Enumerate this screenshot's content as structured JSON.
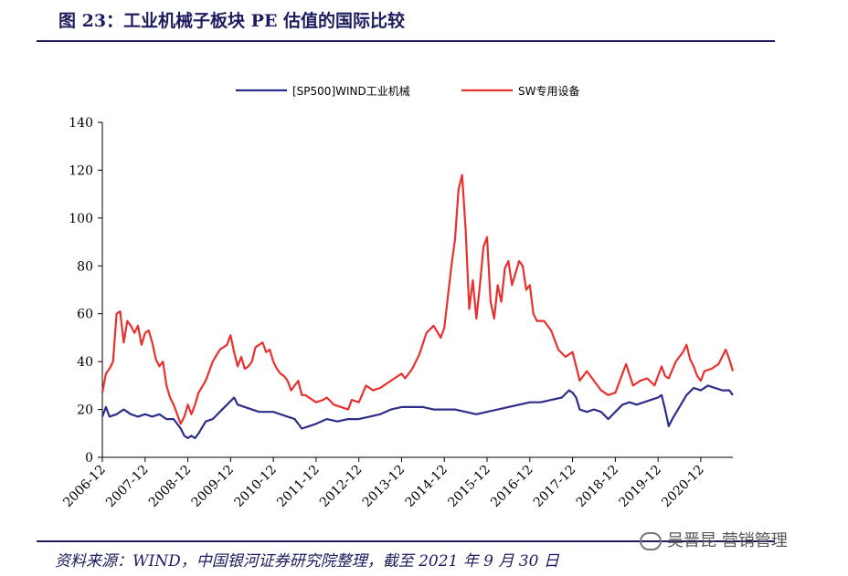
{
  "figure": {
    "title": "图 23：工业机械子板块 PE 估值的国际比较",
    "source": "资料来源：WIND，中国银河证券研究院整理，截至 2021 年 9 月 30 日",
    "watermark": "吴晋昆 营销管理"
  },
  "chart_data": {
    "type": "line",
    "title": "",
    "xlabel": "",
    "ylabel": "",
    "ylim": [
      0,
      140
    ],
    "yticks": [
      0,
      20,
      40,
      60,
      80,
      100,
      120,
      140
    ],
    "xlim": [
      "2006-12",
      "2021-09"
    ],
    "xticks": [
      "2006-12",
      "2007-12",
      "2008-12",
      "2009-12",
      "2010-12",
      "2011-12",
      "2012-12",
      "2013-12",
      "2014-12",
      "2015-12",
      "2016-12",
      "2017-12",
      "2018-12",
      "2019-12",
      "2020-12"
    ],
    "grid": false,
    "legend_position": "top-center",
    "series": [
      {
        "name": "[SP500]WIND工业机械",
        "color": "#2e2e8a",
        "points": [
          [
            "2006-12",
            17
          ],
          [
            "2007-01",
            21
          ],
          [
            "2007-02",
            17
          ],
          [
            "2007-04",
            18
          ],
          [
            "2007-06",
            20
          ],
          [
            "2007-08",
            18
          ],
          [
            "2007-10",
            17
          ],
          [
            "2007-12",
            18
          ],
          [
            "2008-02",
            17
          ],
          [
            "2008-04",
            18
          ],
          [
            "2008-06",
            16
          ],
          [
            "2008-08",
            16
          ],
          [
            "2008-10",
            12
          ],
          [
            "2008-11",
            9
          ],
          [
            "2008-12",
            8
          ],
          [
            "2009-01",
            9
          ],
          [
            "2009-02",
            8
          ],
          [
            "2009-03",
            10
          ],
          [
            "2009-05",
            15
          ],
          [
            "2009-07",
            16
          ],
          [
            "2009-09",
            19
          ],
          [
            "2009-11",
            22
          ],
          [
            "2010-01",
            25
          ],
          [
            "2010-02",
            22
          ],
          [
            "2010-04",
            21
          ],
          [
            "2010-06",
            20
          ],
          [
            "2010-08",
            19
          ],
          [
            "2010-10",
            19
          ],
          [
            "2010-12",
            19
          ],
          [
            "2011-02",
            18
          ],
          [
            "2011-04",
            17
          ],
          [
            "2011-06",
            16
          ],
          [
            "2011-08",
            12
          ],
          [
            "2011-10",
            13
          ],
          [
            "2011-12",
            14
          ],
          [
            "2012-03",
            16
          ],
          [
            "2012-06",
            15
          ],
          [
            "2012-09",
            16
          ],
          [
            "2012-12",
            16
          ],
          [
            "2013-03",
            17
          ],
          [
            "2013-06",
            18
          ],
          [
            "2013-09",
            20
          ],
          [
            "2013-12",
            21
          ],
          [
            "2014-03",
            21
          ],
          [
            "2014-06",
            21
          ],
          [
            "2014-09",
            20
          ],
          [
            "2014-12",
            20
          ],
          [
            "2015-03",
            20
          ],
          [
            "2015-06",
            19
          ],
          [
            "2015-09",
            18
          ],
          [
            "2015-12",
            19
          ],
          [
            "2016-03",
            20
          ],
          [
            "2016-06",
            21
          ],
          [
            "2016-09",
            22
          ],
          [
            "2016-12",
            23
          ],
          [
            "2017-03",
            23
          ],
          [
            "2017-06",
            24
          ],
          [
            "2017-09",
            25
          ],
          [
            "2017-11",
            28
          ],
          [
            "2017-12",
            27
          ],
          [
            "2018-01",
            25
          ],
          [
            "2018-02",
            20
          ],
          [
            "2018-04",
            19
          ],
          [
            "2018-06",
            20
          ],
          [
            "2018-08",
            19
          ],
          [
            "2018-10",
            16
          ],
          [
            "2018-12",
            19
          ],
          [
            "2019-02",
            22
          ],
          [
            "2019-04",
            23
          ],
          [
            "2019-06",
            22
          ],
          [
            "2019-08",
            23
          ],
          [
            "2019-10",
            24
          ],
          [
            "2019-12",
            25
          ],
          [
            "2020-01",
            26
          ],
          [
            "2020-02",
            20
          ],
          [
            "2020-03",
            13
          ],
          [
            "2020-04",
            16
          ],
          [
            "2020-06",
            21
          ],
          [
            "2020-08",
            26
          ],
          [
            "2020-10",
            29
          ],
          [
            "2020-12",
            28
          ],
          [
            "2021-02",
            30
          ],
          [
            "2021-04",
            29
          ],
          [
            "2021-06",
            28
          ],
          [
            "2021-08",
            28
          ],
          [
            "2021-09",
            26
          ]
        ]
      },
      {
        "name": "SW专用设备",
        "color": "#e8312f",
        "points": [
          [
            "2006-12",
            27
          ],
          [
            "2007-01",
            35
          ],
          [
            "2007-02",
            37
          ],
          [
            "2007-03",
            40
          ],
          [
            "2007-04",
            60
          ],
          [
            "2007-05",
            61
          ],
          [
            "2007-06",
            48
          ],
          [
            "2007-07",
            57
          ],
          [
            "2007-08",
            55
          ],
          [
            "2007-09",
            52
          ],
          [
            "2007-10",
            55
          ],
          [
            "2007-11",
            47
          ],
          [
            "2007-12",
            52
          ],
          [
            "2008-01",
            53
          ],
          [
            "2008-02",
            48
          ],
          [
            "2008-03",
            41
          ],
          [
            "2008-04",
            38
          ],
          [
            "2008-05",
            40
          ],
          [
            "2008-06",
            30
          ],
          [
            "2008-07",
            25
          ],
          [
            "2008-08",
            22
          ],
          [
            "2008-09",
            18
          ],
          [
            "2008-10",
            14
          ],
          [
            "2008-11",
            17
          ],
          [
            "2008-12",
            22
          ],
          [
            "2009-01",
            18
          ],
          [
            "2009-02",
            22
          ],
          [
            "2009-03",
            27
          ],
          [
            "2009-05",
            32
          ],
          [
            "2009-07",
            40
          ],
          [
            "2009-09",
            45
          ],
          [
            "2009-11",
            47
          ],
          [
            "2009-12",
            51
          ],
          [
            "2010-01",
            44
          ],
          [
            "2010-02",
            38
          ],
          [
            "2010-03",
            42
          ],
          [
            "2010-04",
            37
          ],
          [
            "2010-05",
            38
          ],
          [
            "2010-06",
            40
          ],
          [
            "2010-07",
            46
          ],
          [
            "2010-08",
            47
          ],
          [
            "2010-09",
            48
          ],
          [
            "2010-10",
            44
          ],
          [
            "2010-11",
            45
          ],
          [
            "2010-12",
            40
          ],
          [
            "2011-01",
            37
          ],
          [
            "2011-02",
            35
          ],
          [
            "2011-03",
            34
          ],
          [
            "2011-04",
            32
          ],
          [
            "2011-05",
            28
          ],
          [
            "2011-06",
            30
          ],
          [
            "2011-07",
            32
          ],
          [
            "2011-08",
            26
          ],
          [
            "2011-09",
            26
          ],
          [
            "2011-10",
            25
          ],
          [
            "2011-11",
            24
          ],
          [
            "2011-12",
            23
          ],
          [
            "2012-02",
            24
          ],
          [
            "2012-03",
            25
          ],
          [
            "2012-05",
            22
          ],
          [
            "2012-07",
            21
          ],
          [
            "2012-09",
            20
          ],
          [
            "2012-10",
            24
          ],
          [
            "2012-12",
            23
          ],
          [
            "2013-02",
            30
          ],
          [
            "2013-04",
            28
          ],
          [
            "2013-06",
            29
          ],
          [
            "2013-08",
            31
          ],
          [
            "2013-10",
            33
          ],
          [
            "2013-12",
            35
          ],
          [
            "2014-01",
            33
          ],
          [
            "2014-03",
            37
          ],
          [
            "2014-05",
            43
          ],
          [
            "2014-07",
            52
          ],
          [
            "2014-09",
            55
          ],
          [
            "2014-11",
            50
          ],
          [
            "2014-12",
            54
          ],
          [
            "2015-01",
            67
          ],
          [
            "2015-02",
            80
          ],
          [
            "2015-03",
            91
          ],
          [
            "2015-04",
            112
          ],
          [
            "2015-05",
            118
          ],
          [
            "2015-06",
            95
          ],
          [
            "2015-07",
            62
          ],
          [
            "2015-08",
            74
          ],
          [
            "2015-09",
            58
          ],
          [
            "2015-10",
            72
          ],
          [
            "2015-11",
            88
          ],
          [
            "2015-12",
            92
          ],
          [
            "2016-01",
            65
          ],
          [
            "2016-02",
            58
          ],
          [
            "2016-03",
            72
          ],
          [
            "2016-04",
            65
          ],
          [
            "2016-05",
            79
          ],
          [
            "2016-06",
            82
          ],
          [
            "2016-07",
            72
          ],
          [
            "2016-08",
            77
          ],
          [
            "2016-09",
            82
          ],
          [
            "2016-10",
            80
          ],
          [
            "2016-11",
            70
          ],
          [
            "2016-12",
            72
          ],
          [
            "2017-01",
            60
          ],
          [
            "2017-02",
            57
          ],
          [
            "2017-04",
            57
          ],
          [
            "2017-06",
            53
          ],
          [
            "2017-08",
            45
          ],
          [
            "2017-10",
            42
          ],
          [
            "2017-12",
            44
          ],
          [
            "2018-01",
            38
          ],
          [
            "2018-02",
            32
          ],
          [
            "2018-04",
            36
          ],
          [
            "2018-06",
            32
          ],
          [
            "2018-08",
            28
          ],
          [
            "2018-10",
            26
          ],
          [
            "2018-12",
            27
          ],
          [
            "2019-01",
            31
          ],
          [
            "2019-03",
            39
          ],
          [
            "2019-05",
            30
          ],
          [
            "2019-07",
            32
          ],
          [
            "2019-09",
            33
          ],
          [
            "2019-11",
            30
          ],
          [
            "2019-12",
            34
          ],
          [
            "2020-01",
            38
          ],
          [
            "2020-02",
            34
          ],
          [
            "2020-03",
            33
          ],
          [
            "2020-05",
            40
          ],
          [
            "2020-07",
            44
          ],
          [
            "2020-08",
            47
          ],
          [
            "2020-09",
            41
          ],
          [
            "2020-10",
            38
          ],
          [
            "2020-11",
            34
          ],
          [
            "2020-12",
            32
          ],
          [
            "2021-01",
            36
          ],
          [
            "2021-03",
            37
          ],
          [
            "2021-05",
            39
          ],
          [
            "2021-07",
            45
          ],
          [
            "2021-08",
            41
          ],
          [
            "2021-09",
            36
          ]
        ]
      }
    ]
  }
}
